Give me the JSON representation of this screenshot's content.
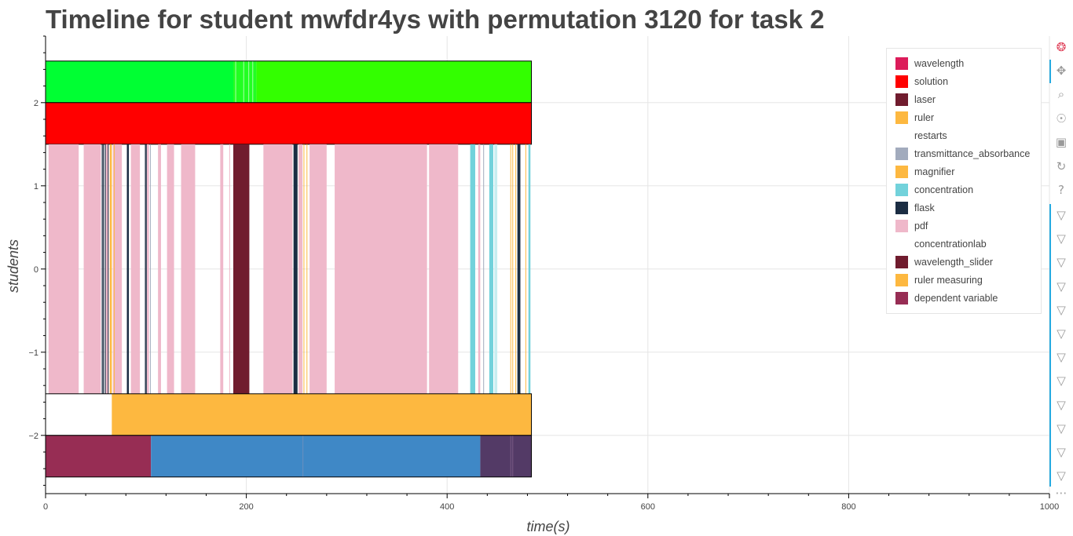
{
  "chart_data": {
    "type": "timeline",
    "title": "Timeline for student mwfdr4ys with permutation 3120 for task 2",
    "xlabel": "time(s)",
    "ylabel": "students",
    "xlim": [
      0,
      1000
    ],
    "ylim": [
      -2.7,
      2.8
    ],
    "x_ticks": [
      0,
      200,
      400,
      600,
      800,
      1000
    ],
    "y_ticks": [
      2,
      1,
      0,
      -1,
      -2
    ],
    "y_tick_labels": [
      "2",
      "1",
      "0",
      "−1",
      "−2"
    ],
    "legend_position": "top-right",
    "legend": [
      {
        "label": "wavelength",
        "color": "#dc1c5a"
      },
      {
        "label": "solution",
        "color": "#ff0000"
      },
      {
        "label": "laser",
        "color": "#701c2e"
      },
      {
        "label": "ruler",
        "color": "#fdb840"
      },
      {
        "label": "restarts",
        "color": "#ffffff"
      },
      {
        "label": "transmittance_absorbance",
        "color": "#a2abbd"
      },
      {
        "label": "magnifier",
        "color": "#fdb840"
      },
      {
        "label": "concentration",
        "color": "#72d2db"
      },
      {
        "label": "flask",
        "color": "#1b2d43"
      },
      {
        "label": "pdf",
        "color": "#efb8ca"
      },
      {
        "label": "concentrationlab",
        "color": "#ffffff"
      },
      {
        "label": "wavelength_slider",
        "color": "#701c2e"
      },
      {
        "label": "ruler measuring",
        "color": "#fdb840"
      },
      {
        "label": "dependent variable",
        "color": "#972d54"
      }
    ],
    "rows": [
      {
        "y": [
          2,
          2.5
        ],
        "outlined": true,
        "segments": [
          {
            "start": 0,
            "end": 187,
            "color": "#00ff33"
          },
          {
            "start": 187,
            "end": 210,
            "color": "#22ff22"
          },
          {
            "start": 210,
            "end": 484,
            "color": "#33ff00"
          }
        ],
        "ticks": [
          {
            "x": 189,
            "color": "#a8ffa8"
          },
          {
            "x": 197,
            "color": "#a8ffa8"
          },
          {
            "x": 202,
            "color": "#a8ffa8"
          },
          {
            "x": 206,
            "color": "#a8ffa8"
          }
        ]
      },
      {
        "y": [
          1.5,
          2
        ],
        "outlined": true,
        "segments": [
          {
            "start": 0,
            "end": 484,
            "color": "#ff0000"
          }
        ],
        "ticks": []
      },
      {
        "y": [
          -1.5,
          1.5
        ],
        "outlined": false,
        "segments": [
          {
            "start": 3,
            "end": 33,
            "color": "#efb8ca"
          },
          {
            "start": 38,
            "end": 55,
            "color": "#efb8ca"
          },
          {
            "start": 57,
            "end": 58,
            "color": "#1b2d43"
          },
          {
            "start": 59,
            "end": 60,
            "color": "#1b2d43"
          },
          {
            "start": 60,
            "end": 63,
            "color": "#efb8ca"
          },
          {
            "start": 64,
            "end": 66,
            "color": "#fdb840"
          },
          {
            "start": 67,
            "end": 76,
            "color": "#efb8ca"
          },
          {
            "start": 81,
            "end": 83,
            "color": "#1b2d43"
          },
          {
            "start": 85,
            "end": 94,
            "color": "#efb8ca"
          },
          {
            "start": 99,
            "end": 100,
            "color": "#1b2d43"
          },
          {
            "start": 101,
            "end": 103,
            "color": "#efb8ca"
          },
          {
            "start": 112,
            "end": 115,
            "color": "#efb8ca"
          },
          {
            "start": 121,
            "end": 128,
            "color": "#efb8ca"
          },
          {
            "start": 135,
            "end": 149,
            "color": "#efb8ca"
          },
          {
            "start": 174,
            "end": 177,
            "color": "#efb8ca"
          },
          {
            "start": 187,
            "end": 203,
            "color": "#701c2e"
          },
          {
            "start": 217,
            "end": 246,
            "color": "#efb8ca"
          },
          {
            "start": 247,
            "end": 251,
            "color": "#1b2d43"
          },
          {
            "start": 252,
            "end": 256,
            "color": "#efb8ca"
          },
          {
            "start": 263,
            "end": 280,
            "color": "#efb8ca"
          },
          {
            "start": 288,
            "end": 380,
            "color": "#efb8ca"
          },
          {
            "start": 382,
            "end": 411,
            "color": "#efb8ca"
          },
          {
            "start": 423,
            "end": 428,
            "color": "#72d2db"
          },
          {
            "start": 431,
            "end": 433,
            "color": "#efb8ca"
          },
          {
            "start": 442,
            "end": 446,
            "color": "#72d2db"
          },
          {
            "start": 447,
            "end": 450,
            "color": "#c8eef1"
          },
          {
            "start": 470,
            "end": 473,
            "color": "#1b2d43"
          },
          {
            "start": 481,
            "end": 483,
            "color": "#72d2db"
          }
        ],
        "ticks": [
          {
            "x": 56,
            "color": "#1b2d43"
          },
          {
            "x": 62,
            "color": "#1b2d43"
          },
          {
            "x": 68,
            "color": "#fdb840"
          },
          {
            "x": 100,
            "color": "#1b2d43"
          },
          {
            "x": 104,
            "color": "#a2abbd"
          },
          {
            "x": 183,
            "color": "#efb8ca"
          },
          {
            "x": 257,
            "color": "#fdb840"
          },
          {
            "x": 260,
            "color": "#fdb840"
          },
          {
            "x": 436,
            "color": "#a2abbd"
          },
          {
            "x": 463,
            "color": "#fdb840"
          },
          {
            "x": 465,
            "color": "#fdb840"
          },
          {
            "x": 468,
            "color": "#fdb840"
          },
          {
            "x": 478,
            "color": "#fdb840"
          }
        ]
      },
      {
        "y": [
          -2,
          -1.5
        ],
        "outlined": true,
        "segments": [
          {
            "start": 0,
            "end": 66,
            "color": "#ffffff"
          },
          {
            "start": 66,
            "end": 484,
            "color": "#fdb840"
          }
        ],
        "ticks": []
      },
      {
        "y": [
          -2.5,
          -2
        ],
        "outlined": true,
        "segments": [
          {
            "start": 0,
            "end": 105,
            "color": "#972d54"
          },
          {
            "start": 105,
            "end": 433,
            "color": "#3f88c6"
          },
          {
            "start": 433,
            "end": 484,
            "color": "#533a66"
          }
        ],
        "ticks": [
          {
            "x": 256,
            "color": "#6a8fbf"
          },
          {
            "x": 463,
            "color": "#7a5c86"
          },
          {
            "x": 465,
            "color": "#7a5c86"
          }
        ]
      }
    ]
  },
  "toolbar": {
    "tools": [
      {
        "name": "bokeh-logo-icon",
        "glyph": "❂"
      },
      {
        "name": "pan-icon",
        "glyph": "✥"
      },
      {
        "name": "box-zoom-icon",
        "glyph": "⌕"
      },
      {
        "name": "wheel-zoom-icon",
        "glyph": "☉"
      },
      {
        "name": "save-icon",
        "glyph": "▣"
      },
      {
        "name": "reset-icon",
        "glyph": "↻"
      },
      {
        "name": "help-icon",
        "glyph": "?"
      },
      {
        "name": "hover-icon",
        "glyph": "▽"
      },
      {
        "name": "hover-icon",
        "glyph": "▽"
      },
      {
        "name": "hover-icon",
        "glyph": "▽"
      },
      {
        "name": "hover-icon",
        "glyph": "▽"
      },
      {
        "name": "hover-icon",
        "glyph": "▽"
      },
      {
        "name": "hover-icon",
        "glyph": "▽"
      },
      {
        "name": "hover-icon",
        "glyph": "▽"
      },
      {
        "name": "hover-icon",
        "glyph": "▽"
      },
      {
        "name": "hover-icon",
        "glyph": "▽"
      },
      {
        "name": "hover-icon",
        "glyph": "▽"
      },
      {
        "name": "hover-icon",
        "glyph": "▽"
      },
      {
        "name": "hover-icon",
        "glyph": "▽"
      },
      {
        "name": "more-icon",
        "glyph": "⋯"
      }
    ]
  }
}
